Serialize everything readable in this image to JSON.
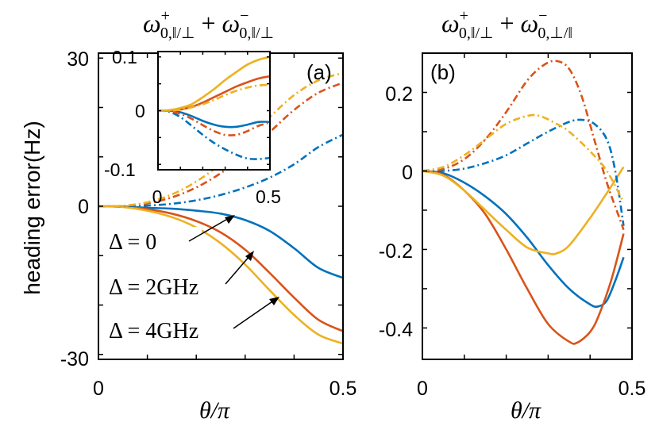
{
  "colors": {
    "blue": "#0072BD",
    "orange": "#D95319",
    "yellow": "#EDB120",
    "axis": "#000000"
  },
  "chart_data": [
    {
      "panel": "a",
      "type": "line",
      "title": {
        "omega": "ω",
        "sup1": "+",
        "sub1": "0,‖/⊥",
        "plus": " + ",
        "sup2": "−",
        "sub2": "0,‖/⊥"
      },
      "panel_label": "(a)",
      "xlabel": "θ/π",
      "ylabel": "heading error(Hz)",
      "xlim": [
        0,
        0.5
      ],
      "ylim": [
        -31,
        31
      ],
      "xticks": [
        0,
        0.5
      ],
      "xtick_labels": [
        "0",
        "0.5"
      ],
      "yticks": [
        30,
        0,
        -30
      ],
      "ytick_labels": [
        "30",
        "0",
        "-30"
      ],
      "series": [
        {
          "name": "Δ = 0 solid",
          "color": "blue",
          "dash": "solid",
          "x": [
            0,
            0.05,
            0.1,
            0.15,
            0.2,
            0.25,
            0.3,
            0.35,
            0.4,
            0.45,
            0.5
          ],
          "y": [
            0,
            -0.05,
            -0.3,
            -0.5,
            -0.9,
            -1.5,
            -2.8,
            -5.0,
            -8.5,
            -12.5,
            -14.5
          ]
        },
        {
          "name": "Δ = 2GHz solid",
          "color": "orange",
          "dash": "solid",
          "x": [
            0,
            0.05,
            0.1,
            0.15,
            0.2,
            0.25,
            0.3,
            0.35,
            0.4,
            0.45,
            0.5
          ],
          "y": [
            0,
            -0.1,
            -0.6,
            -1.5,
            -3.0,
            -5.3,
            -8.8,
            -13.5,
            -18.5,
            -23.0,
            -25.3
          ]
        },
        {
          "name": "Δ = 4GHz solid",
          "color": "yellow",
          "dash": "solid",
          "x": [
            0,
            0.05,
            0.1,
            0.15,
            0.2,
            0.25,
            0.3,
            0.35,
            0.4,
            0.45,
            0.5
          ],
          "y": [
            0,
            -0.15,
            -0.9,
            -2.2,
            -4.3,
            -7.5,
            -11.8,
            -17.0,
            -22.0,
            -26.0,
            -27.8
          ]
        },
        {
          "name": "blue dash-dot",
          "color": "blue",
          "dash": "dashdot",
          "x": [
            0,
            0.05,
            0.1,
            0.15,
            0.2,
            0.25,
            0.3,
            0.35,
            0.4,
            0.45,
            0.5
          ],
          "y": [
            0,
            0.02,
            0.15,
            0.5,
            1.2,
            2.3,
            3.8,
            5.8,
            8.5,
            12.0,
            14.5
          ]
        },
        {
          "name": "orange dash-dot",
          "color": "orange",
          "dash": "dashdot",
          "x": [
            0,
            0.05,
            0.1,
            0.15,
            0.2,
            0.25,
            0.3,
            0.35,
            0.4,
            0.45,
            0.5
          ],
          "y": [
            0,
            0.08,
            0.6,
            1.8,
            3.8,
            6.7,
            10.5,
            15.0,
            19.5,
            23.0,
            25.0
          ]
        },
        {
          "name": "yellow dash-dot",
          "color": "yellow",
          "dash": "dashdot",
          "x": [
            0,
            0.05,
            0.1,
            0.15,
            0.2,
            0.25,
            0.3,
            0.35,
            0.4,
            0.45,
            0.5
          ],
          "y": [
            0,
            0.1,
            0.8,
            2.4,
            5.0,
            8.6,
            13.0,
            18.0,
            22.5,
            25.5,
            27.0
          ]
        }
      ],
      "legend": [
        {
          "math": "Δ",
          "eq": " = ",
          "val": "0"
        },
        {
          "math": "Δ",
          "eq": " = ",
          "val": "2GHz"
        },
        {
          "math": "Δ",
          "eq": " = ",
          "val": "4GHz"
        }
      ],
      "inset": {
        "xlim": [
          0,
          0.5
        ],
        "ylim": [
          -0.11,
          0.11
        ],
        "xtick_labels": [
          "0",
          "0.5"
        ],
        "ytick_labels": [
          "0.1",
          "0",
          "-0.1"
        ],
        "yticks": [
          0.1,
          0,
          -0.1
        ],
        "series": [
          {
            "color": "blue",
            "dash": "solid",
            "x": [
              0,
              0.05,
              0.1,
              0.15,
              0.2,
              0.25,
              0.3,
              0.35,
              0.4,
              0.45,
              0.5
            ],
            "y": [
              0,
              0.0,
              -0.003,
              -0.01,
              -0.019,
              -0.026,
              -0.03,
              -0.03,
              -0.026,
              -0.021,
              -0.021
            ]
          },
          {
            "color": "orange",
            "dash": "solid",
            "x": [
              0,
              0.05,
              0.1,
              0.15,
              0.2,
              0.25,
              0.3,
              0.35,
              0.4,
              0.45,
              0.5
            ],
            "y": [
              0,
              0.0,
              0.002,
              0.007,
              0.015,
              0.025,
              0.035,
              0.045,
              0.053,
              0.06,
              0.064
            ]
          },
          {
            "color": "yellow",
            "dash": "solid",
            "x": [
              0,
              0.05,
              0.1,
              0.15,
              0.2,
              0.25,
              0.3,
              0.35,
              0.4,
              0.45,
              0.5
            ],
            "y": [
              0,
              0.001,
              0.005,
              0.012,
              0.025,
              0.04,
              0.057,
              0.072,
              0.086,
              0.095,
              0.1
            ]
          },
          {
            "color": "blue",
            "dash": "dashdot",
            "x": [
              0,
              0.05,
              0.1,
              0.15,
              0.2,
              0.25,
              0.3,
              0.35,
              0.4,
              0.45,
              0.5
            ],
            "y": [
              0,
              -0.002,
              -0.012,
              -0.028,
              -0.045,
              -0.06,
              -0.072,
              -0.082,
              -0.089,
              -0.09,
              -0.088
            ]
          },
          {
            "color": "orange",
            "dash": "dashdot",
            "x": [
              0,
              0.05,
              0.1,
              0.15,
              0.2,
              0.25,
              0.3,
              0.35,
              0.4,
              0.45,
              0.5
            ],
            "y": [
              0,
              -0.001,
              -0.006,
              -0.015,
              -0.027,
              -0.038,
              -0.045,
              -0.045,
              -0.038,
              -0.028,
              -0.022
            ]
          },
          {
            "color": "yellow",
            "dash": "dashdot",
            "x": [
              0,
              0.05,
              0.1,
              0.15,
              0.2,
              0.25,
              0.3,
              0.35,
              0.4,
              0.45,
              0.5
            ],
            "y": [
              0,
              0.0,
              0.002,
              0.006,
              0.012,
              0.02,
              0.029,
              0.037,
              0.043,
              0.047,
              0.048
            ]
          }
        ]
      }
    },
    {
      "panel": "b",
      "type": "line",
      "title": {
        "omega": "ω",
        "sup1": "+",
        "sub1": "0,‖/⊥",
        "plus": " + ",
        "sup2": "−",
        "sub2": "0,⊥/‖"
      },
      "panel_label": "(b)",
      "xlabel": "θ/π",
      "xlim": [
        0,
        0.5
      ],
      "ylim": [
        -0.48,
        0.3
      ],
      "xticks": [
        0,
        0.5
      ],
      "xtick_labels": [
        "0",
        "0.5"
      ],
      "yticks": [
        0.2,
        0,
        -0.2,
        -0.4
      ],
      "ytick_labels": [
        "0.2",
        "0",
        "-0.2",
        "-0.4"
      ],
      "series": [
        {
          "name": "blue solid",
          "color": "blue",
          "dash": "solid",
          "x": [
            0,
            0.05,
            0.1,
            0.15,
            0.2,
            0.25,
            0.3,
            0.35,
            0.4,
            0.42,
            0.44,
            0.46,
            0.48
          ],
          "y": [
            0,
            -0.006,
            -0.03,
            -0.065,
            -0.11,
            -0.17,
            -0.24,
            -0.3,
            -0.34,
            -0.345,
            -0.33,
            -0.28,
            -0.22
          ]
        },
        {
          "name": "orange solid",
          "color": "orange",
          "dash": "solid",
          "x": [
            0,
            0.05,
            0.1,
            0.15,
            0.2,
            0.25,
            0.3,
            0.35,
            0.37,
            0.4,
            0.42,
            0.45,
            0.48
          ],
          "y": [
            0,
            -0.01,
            -0.05,
            -0.11,
            -0.2,
            -0.3,
            -0.39,
            -0.435,
            -0.437,
            -0.41,
            -0.37,
            -0.28,
            -0.16
          ]
        },
        {
          "name": "yellow solid",
          "color": "yellow",
          "dash": "solid",
          "x": [
            0,
            0.05,
            0.1,
            0.15,
            0.2,
            0.25,
            0.3,
            0.32,
            0.35,
            0.4,
            0.45,
            0.48
          ],
          "y": [
            0,
            -0.012,
            -0.05,
            -0.1,
            -0.15,
            -0.195,
            -0.21,
            -0.21,
            -0.19,
            -0.12,
            -0.04,
            0.01
          ]
        },
        {
          "name": "blue dash-dot",
          "color": "blue",
          "dash": "dashdot",
          "x": [
            0,
            0.05,
            0.1,
            0.15,
            0.2,
            0.25,
            0.3,
            0.35,
            0.38,
            0.41,
            0.44,
            0.46,
            0.48
          ],
          "y": [
            0,
            0.0,
            0.006,
            0.02,
            0.04,
            0.07,
            0.1,
            0.125,
            0.13,
            0.12,
            0.08,
            0.0,
            -0.14
          ]
        },
        {
          "name": "orange dash-dot",
          "color": "orange",
          "dash": "dashdot",
          "x": [
            0,
            0.05,
            0.1,
            0.15,
            0.2,
            0.25,
            0.29,
            0.32,
            0.35,
            0.38,
            0.41,
            0.44,
            0.47,
            0.48
          ],
          "y": [
            0,
            0.005,
            0.03,
            0.08,
            0.15,
            0.23,
            0.27,
            0.28,
            0.26,
            0.19,
            0.08,
            -0.03,
            -0.12,
            -0.15
          ]
        },
        {
          "name": "yellow dash-dot",
          "color": "yellow",
          "dash": "dashdot",
          "x": [
            0,
            0.05,
            0.1,
            0.15,
            0.2,
            0.25,
            0.28,
            0.32,
            0.35,
            0.4,
            0.44,
            0.48
          ],
          "y": [
            0,
            0.01,
            0.04,
            0.08,
            0.12,
            0.14,
            0.14,
            0.12,
            0.1,
            0.05,
            0.0,
            -0.08
          ]
        }
      ]
    }
  ]
}
